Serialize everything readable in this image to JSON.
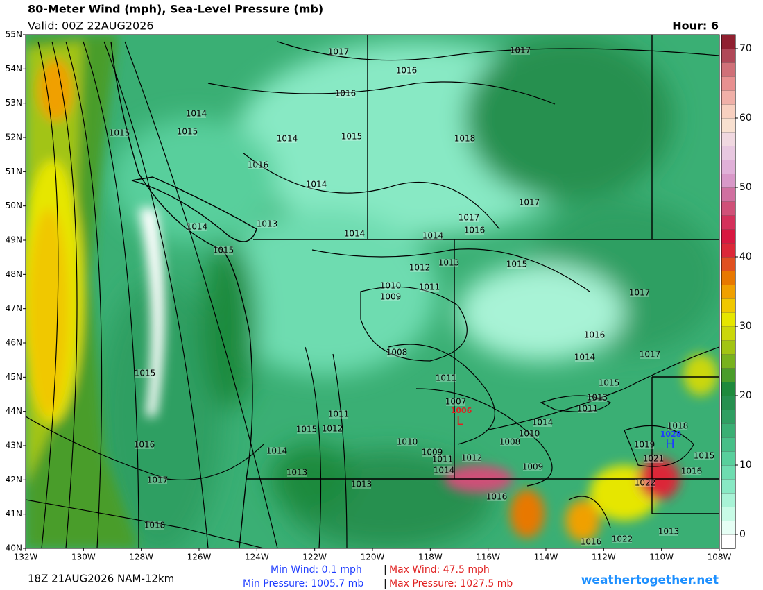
{
  "header": {
    "title": "80-Meter Wind (mph), Sea-Level Pressure (mb)",
    "valid": "Valid: 00Z 22AUG2026",
    "hour": "Hour: 6"
  },
  "map": {
    "lat_labels": [
      "55N",
      "54N",
      "53N",
      "52N",
      "51N",
      "50N",
      "49N",
      "48N",
      "47N",
      "46N",
      "45N",
      "44N",
      "43N",
      "42N",
      "41N",
      "40N"
    ],
    "lon_labels": [
      "132W",
      "130W",
      "128W",
      "126W",
      "124W",
      "122W",
      "120W",
      "118W",
      "116W",
      "114W",
      "112W",
      "110W",
      "108W"
    ],
    "isobar_labels": [
      "1017",
      "1016",
      "1017",
      "1016",
      "1014",
      "1015",
      "1015",
      "1014",
      "1015",
      "1018",
      "1016",
      "1014",
      "1017",
      "1017",
      "1016",
      "1014",
      "1013",
      "1014",
      "1014",
      "1015",
      "1012",
      "1013",
      "1015",
      "1010",
      "1011",
      "1009",
      "1017",
      "1016",
      "1008",
      "1014",
      "1017",
      "1015",
      "1011",
      "1015",
      "1013",
      "1007",
      "1011",
      "1011",
      "1014",
      "1015",
      "1012",
      "1010",
      "1018",
      "1016",
      "1014",
      "1010",
      "1008",
      "1019",
      "1009",
      "1012",
      "1011",
      "1021",
      "1015",
      "1013",
      "1014",
      "1009",
      "1016",
      "1017",
      "1013",
      "1022",
      "1016",
      "1018",
      "1016",
      "1022",
      "1013"
    ],
    "low": {
      "label": "L",
      "value": "1006"
    },
    "high": {
      "label": "H",
      "value": "1028"
    }
  },
  "colorbar": {
    "lim": [
      -2,
      72
    ],
    "ticks": [
      0,
      10,
      20,
      30,
      40,
      50,
      60,
      70
    ],
    "colors": [
      "#ffffff",
      "#e6fff5",
      "#c8fbe6",
      "#a8f3d6",
      "#88e9c4",
      "#6edcb0",
      "#58cf9c",
      "#47bf88",
      "#3aaf74",
      "#2f9f62",
      "#26904f",
      "#1e8a3c",
      "#4a9d2a",
      "#78b21d",
      "#a2c412",
      "#cbd70a",
      "#e6e600",
      "#f0c800",
      "#f0a000",
      "#e87800",
      "#e05020",
      "#dc2838",
      "#d81840",
      "#d4305a",
      "#d05078",
      "#d070a0",
      "#d898c8",
      "#e0b0d8",
      "#e8c8e0",
      "#f0d8e0",
      "#f8e0d0",
      "#f8d0c0",
      "#f0b0a8",
      "#e89090",
      "#d07078",
      "#b04858",
      "#902030"
    ]
  },
  "footer": {
    "run": "18Z 21AUG2026 NAM-12km",
    "min_wind": "Min Wind:   0.1 mph",
    "sep1": "|",
    "max_wind": "Max Wind: 47.5 mph",
    "min_pressure": "Min Pressure: 1005.7 mb",
    "sep2": "|",
    "max_pressure": "Max Pressure: 1027.5 mb",
    "site": "weathertogether.net"
  }
}
